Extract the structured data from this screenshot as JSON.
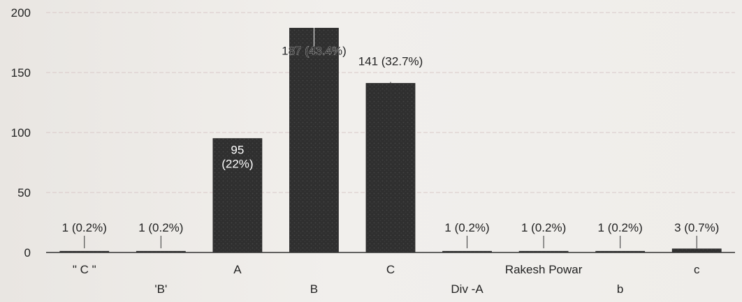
{
  "chart_data": {
    "type": "bar",
    "title": "",
    "xlabel": "",
    "ylabel": "",
    "ylim": [
      0,
      200
    ],
    "yticks": [
      0,
      50,
      100,
      150,
      200
    ],
    "grid": true,
    "categories": [
      "\" C \"",
      "'B'",
      "A",
      "B",
      "C",
      "Div -A",
      "Rakesh Powar",
      "b",
      "c"
    ],
    "values": [
      1,
      1,
      95,
      187,
      141,
      1,
      1,
      1,
      3
    ],
    "labels": [
      "1 (0.2%)",
      "1 (0.2%)",
      "95 (22%)",
      "187 (43.4%)",
      "141 (32.7%)",
      "1 (0.2%)",
      "1 (0.2%)",
      "1 (0.2%)",
      "3 (0.7%)"
    ],
    "colors": {
      "bar": "#2f2f2f",
      "bar_texture": "#4a4a4a",
      "axis": "#333333",
      "grid": "#d9c9c9",
      "text": "#222222"
    }
  }
}
